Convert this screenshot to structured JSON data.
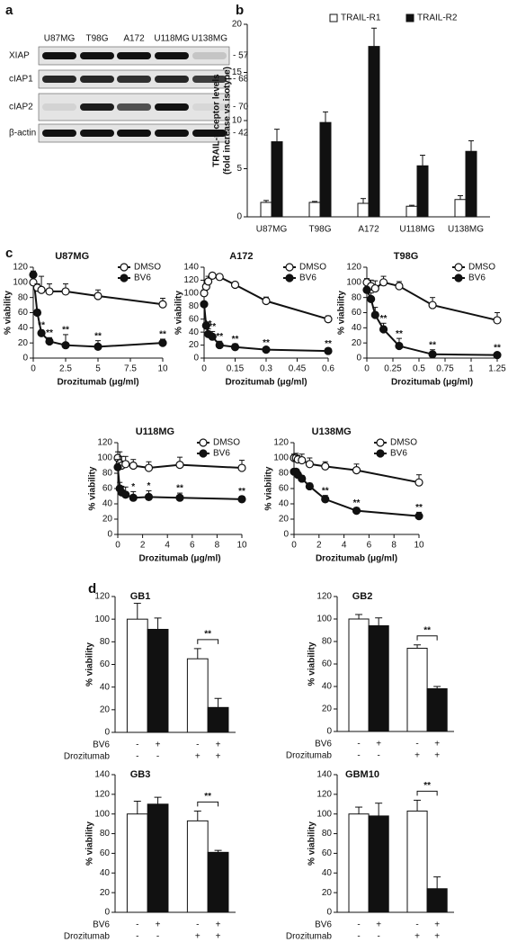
{
  "panel_labels": [
    "a",
    "b",
    "c",
    "d"
  ],
  "blot": {
    "lanes": [
      "U87MG",
      "T98G",
      "A172",
      "U118MG",
      "U138MG"
    ],
    "rows": [
      {
        "label": "XIAP",
        "marker": "- 57"
      },
      {
        "label": "cIAP1",
        "marker": "- 68"
      },
      {
        "label": "cIAP2",
        "marker": "- 70"
      },
      {
        "label": "β-actin",
        "marker": "- 42"
      }
    ]
  },
  "chart_data": [
    {
      "type": "bar",
      "ylabel": [
        "TRAIL-receptor levels",
        "(fold increase vs isotype)"
      ],
      "categories": [
        "U87MG",
        "T98G",
        "A172",
        "U118MG",
        "U138MG"
      ],
      "series": [
        {
          "name": "TRAIL-R1",
          "color": "#ffffff",
          "values": [
            1.5,
            1.5,
            1.4,
            1.1,
            1.8
          ],
          "errors": [
            0.2,
            0.1,
            0.5,
            0.1,
            0.4
          ]
        },
        {
          "name": "TRAIL-R2",
          "color": "#111111",
          "values": [
            7.8,
            9.8,
            17.7,
            5.3,
            6.8
          ],
          "errors": [
            1.3,
            1.1,
            1.9,
            1.1,
            1.1
          ]
        }
      ],
      "ylim": [
        0,
        20
      ],
      "yticks": [
        0,
        5,
        10,
        15,
        20
      ],
      "legend": "top"
    },
    {
      "type": "line",
      "title": "U87MG",
      "xlabel": "Drozitumab (μg/ml)",
      "ylabel": "% viability",
      "x": [
        0,
        0.31,
        0.63,
        1.25,
        2.5,
        5,
        10
      ],
      "series": [
        {
          "name": "DMSO",
          "color": "#111111",
          "marker": "open",
          "values": [
            100,
            93,
            90,
            88,
            88,
            82,
            71
          ],
          "errors": [
            6,
            5,
            18,
            10,
            10,
            8,
            8
          ]
        },
        {
          "name": "BV6",
          "color": "#111111",
          "marker": "filled",
          "values": [
            110,
            60,
            33,
            22,
            17,
            15,
            20
          ],
          "errors": [
            5,
            4,
            4,
            5,
            14,
            8,
            5
          ],
          "significance": [
            null,
            null,
            "**",
            "**",
            "**",
            "**",
            "**"
          ]
        }
      ],
      "xlim": [
        0,
        10
      ],
      "xticks": [
        0,
        2.5,
        5,
        7.5,
        10
      ],
      "ylim": [
        0,
        120
      ],
      "yticks": [
        0,
        20,
        40,
        60,
        80,
        100,
        120
      ],
      "legend": "top-right"
    },
    {
      "type": "line",
      "title": "A172",
      "xlabel": "Drozitumab (μg/ml)",
      "ylabel": "% viability",
      "x": [
        0,
        0.01,
        0.02,
        0.04,
        0.075,
        0.15,
        0.3,
        0.6
      ],
      "series": [
        {
          "name": "DMSO",
          "color": "#111111",
          "marker": "open",
          "values": [
            100,
            110,
            118,
            127,
            125,
            113,
            88,
            60
          ],
          "errors": [
            5,
            10,
            8,
            3,
            4,
            4,
            6,
            5
          ]
        },
        {
          "name": "BV6",
          "color": "#111111",
          "marker": "filled",
          "values": [
            83,
            50,
            37,
            33,
            20,
            17,
            13,
            11
          ],
          "errors": [
            3,
            5,
            8,
            8,
            6,
            5,
            3,
            4
          ],
          "significance": [
            null,
            null,
            "**",
            "**",
            "**",
            "**",
            "**",
            "**"
          ]
        }
      ],
      "xlim": [
        0,
        0.6
      ],
      "xticks": [
        0,
        0.15,
        0.3,
        0.45,
        0.6
      ],
      "ylim": [
        0,
        140
      ],
      "yticks": [
        0,
        20,
        40,
        60,
        80,
        100,
        120,
        140
      ],
      "legend": "top-right"
    },
    {
      "type": "line",
      "title": "T98G",
      "xlabel": "Drozitumab (μg/ml)",
      "ylabel": "% viability",
      "x": [
        0,
        0.04,
        0.08,
        0.16,
        0.31,
        0.63,
        1.25
      ],
      "series": [
        {
          "name": "DMSO",
          "color": "#111111",
          "marker": "open",
          "values": [
            100,
            95,
            92,
            100,
            95,
            70,
            50
          ],
          "errors": [
            5,
            8,
            10,
            8,
            6,
            10,
            10
          ]
        },
        {
          "name": "BV6",
          "color": "#111111",
          "marker": "filled",
          "values": [
            90,
            78,
            57,
            38,
            16,
            5,
            4
          ],
          "errors": [
            4,
            8,
            10,
            8,
            10,
            6,
            3
          ],
          "significance": [
            null,
            null,
            null,
            "**",
            "**",
            "**",
            "**"
          ]
        }
      ],
      "xlim": [
        0,
        1.25
      ],
      "xticks": [
        0,
        0.25,
        0.5,
        0.75,
        1,
        1.25
      ],
      "ylim": [
        0,
        120
      ],
      "yticks": [
        0,
        20,
        40,
        60,
        80,
        100,
        120
      ],
      "legend": "top-right"
    },
    {
      "type": "line",
      "title": "U118MG",
      "xlabel": "Drozitumab (μg/ml)",
      "ylabel": "% viability",
      "x": [
        0,
        0.16,
        0.31,
        0.63,
        1.25,
        2.5,
        5,
        10
      ],
      "series": [
        {
          "name": "DMSO",
          "color": "#111111",
          "marker": "open",
          "values": [
            100,
            93,
            90,
            92,
            90,
            87,
            91,
            87
          ],
          "errors": [
            8,
            15,
            12,
            10,
            8,
            8,
            10,
            10
          ]
        },
        {
          "name": "BV6",
          "color": "#111111",
          "marker": "filled",
          "values": [
            88,
            60,
            55,
            52,
            48,
            49,
            48,
            46
          ],
          "errors": [
            10,
            8,
            8,
            10,
            8,
            8,
            6,
            4
          ],
          "significance": [
            null,
            null,
            null,
            null,
            "*",
            "*",
            "**",
            "**"
          ]
        }
      ],
      "xlim": [
        0,
        10
      ],
      "xticks": [
        0,
        2,
        4,
        6,
        8,
        10
      ],
      "ylim": [
        0,
        120
      ],
      "yticks": [
        0,
        20,
        40,
        60,
        80,
        100,
        120
      ],
      "legend": "top-right"
    },
    {
      "type": "line",
      "title": "U138MG",
      "xlabel": "Drozitumab (μg/ml)",
      "ylabel": "% viability",
      "x": [
        0,
        0.16,
        0.31,
        0.63,
        1.25,
        2.5,
        5,
        10
      ],
      "series": [
        {
          "name": "DMSO",
          "color": "#111111",
          "marker": "open",
          "values": [
            100,
            100,
            98,
            97,
            92,
            89,
            84,
            68
          ],
          "errors": [
            5,
            6,
            5,
            8,
            8,
            6,
            8,
            10
          ]
        },
        {
          "name": "BV6",
          "color": "#111111",
          "marker": "filled",
          "values": [
            82,
            82,
            78,
            73,
            63,
            46,
            31,
            24
          ],
          "errors": [
            3,
            3,
            4,
            4,
            4,
            5,
            4,
            5
          ],
          "significance": [
            null,
            null,
            null,
            null,
            null,
            "**",
            "**",
            "**"
          ]
        }
      ],
      "xlim": [
        0,
        10
      ],
      "xticks": [
        0,
        2,
        4,
        6,
        8,
        10
      ],
      "ylim": [
        0,
        120
      ],
      "yticks": [
        0,
        20,
        40,
        60,
        80,
        100,
        120
      ],
      "legend": "top-right"
    },
    {
      "type": "bar",
      "title": "GB1",
      "ylabel": "% viability",
      "values": [
        100,
        91,
        65,
        22
      ],
      "errors": [
        14,
        10,
        9,
        8
      ],
      "colors": [
        "#ffffff",
        "#111111",
        "#ffffff",
        "#111111"
      ],
      "ylim": [
        0,
        120
      ],
      "yticks": [
        0,
        20,
        40,
        60,
        80,
        100,
        120
      ],
      "treatments": [
        {
          "label": "BV6",
          "marks": [
            "-",
            "+",
            "-",
            "+"
          ]
        },
        {
          "label": "Drozitumab",
          "marks": [
            "-",
            "-",
            "+",
            "+"
          ]
        }
      ],
      "significance": "**"
    },
    {
      "type": "bar",
      "title": "GB2",
      "ylabel": "% viability",
      "values": [
        100,
        94,
        74,
        38
      ],
      "errors": [
        4,
        7,
        3,
        2
      ],
      "colors": [
        "#ffffff",
        "#111111",
        "#ffffff",
        "#111111"
      ],
      "ylim": [
        0,
        120
      ],
      "yticks": [
        0,
        20,
        40,
        60,
        80,
        100,
        120
      ],
      "treatments": [
        {
          "label": "BV6",
          "marks": [
            "-",
            "+",
            "-",
            "+"
          ]
        },
        {
          "label": "Drozitumab",
          "marks": [
            "-",
            "-",
            "+",
            "+"
          ]
        }
      ],
      "significance": "**"
    },
    {
      "type": "bar",
      "title": "GB3",
      "ylabel": "% viability",
      "values": [
        100,
        110,
        93,
        61
      ],
      "errors": [
        13,
        7,
        10,
        2
      ],
      "colors": [
        "#ffffff",
        "#111111",
        "#ffffff",
        "#111111"
      ],
      "ylim": [
        0,
        140
      ],
      "yticks": [
        0,
        20,
        40,
        60,
        80,
        100,
        120,
        140
      ],
      "treatments": [
        {
          "label": "BV6",
          "marks": [
            "-",
            "+",
            "-",
            "+"
          ]
        },
        {
          "label": "Drozitumab",
          "marks": [
            "-",
            "-",
            "+",
            "+"
          ]
        }
      ],
      "significance": "**"
    },
    {
      "type": "bar",
      "title": "GBM10",
      "ylabel": "% viability",
      "values": [
        100,
        98,
        103,
        24
      ],
      "errors": [
        7,
        13,
        11,
        12
      ],
      "colors": [
        "#ffffff",
        "#111111",
        "#ffffff",
        "#111111"
      ],
      "ylim": [
        0,
        140
      ],
      "yticks": [
        0,
        20,
        40,
        60,
        80,
        100,
        120,
        140
      ],
      "treatments": [
        {
          "label": "BV6",
          "marks": [
            "-",
            "+",
            "-",
            "+"
          ]
        },
        {
          "label": "Drozitumab",
          "marks": [
            "-",
            "-",
            "+",
            "+"
          ]
        }
      ],
      "significance": "**"
    }
  ]
}
